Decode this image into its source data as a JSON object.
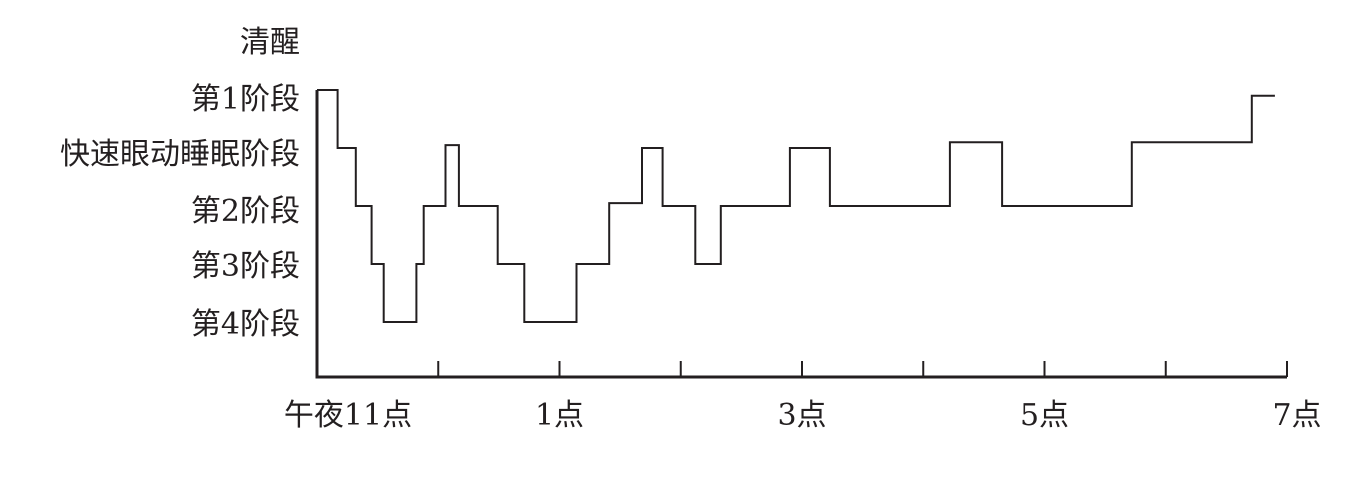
{
  "chart_data": {
    "type": "line",
    "title": "",
    "xlabel": "",
    "ylabel": "",
    "line_style": "step",
    "line_color": "#231f20",
    "y_categories": [
      "第4阶段",
      "第3阶段",
      "第2阶段",
      "快速眼动睡眠阶段",
      "第1阶段",
      "清醒"
    ],
    "x_tick_labels": [
      "午夜11点",
      "1点",
      "3点",
      "5点",
      "7点"
    ],
    "x_range_hours": [
      0,
      8
    ],
    "series": [
      {
        "points": [
          [
            0.0,
            5.0
          ],
          [
            0.17,
            5.0
          ],
          [
            0.17,
            4.0
          ],
          [
            0.32,
            4.0
          ],
          [
            0.32,
            3.0
          ],
          [
            0.45,
            3.0
          ],
          [
            0.45,
            2.0
          ],
          [
            0.55,
            2.0
          ],
          [
            0.55,
            1.0
          ],
          [
            0.82,
            1.0
          ],
          [
            0.82,
            2.0
          ],
          [
            0.88,
            2.0
          ],
          [
            0.88,
            3.0
          ],
          [
            1.06,
            3.0
          ],
          [
            1.06,
            4.05
          ],
          [
            1.17,
            4.05
          ],
          [
            1.17,
            3.0
          ],
          [
            1.49,
            3.0
          ],
          [
            1.49,
            2.0
          ],
          [
            1.71,
            2.0
          ],
          [
            1.71,
            1.0
          ],
          [
            2.14,
            1.0
          ],
          [
            2.14,
            2.0
          ],
          [
            2.41,
            2.0
          ],
          [
            2.41,
            3.05
          ],
          [
            2.68,
            3.05
          ],
          [
            2.68,
            4.0
          ],
          [
            2.85,
            4.0
          ],
          [
            2.85,
            3.0
          ],
          [
            3.12,
            3.0
          ],
          [
            3.12,
            2.0
          ],
          [
            3.33,
            2.0
          ],
          [
            3.33,
            3.0
          ],
          [
            3.9,
            3.0
          ],
          [
            3.9,
            4.0
          ],
          [
            4.23,
            4.0
          ],
          [
            4.23,
            3.0
          ],
          [
            5.22,
            3.0
          ],
          [
            5.22,
            4.1
          ],
          [
            5.65,
            4.1
          ],
          [
            5.65,
            3.0
          ],
          [
            6.72,
            3.0
          ],
          [
            6.72,
            4.1
          ],
          [
            7.71,
            4.1
          ],
          [
            7.71,
            4.9
          ],
          [
            7.9,
            4.9
          ]
        ]
      }
    ]
  }
}
